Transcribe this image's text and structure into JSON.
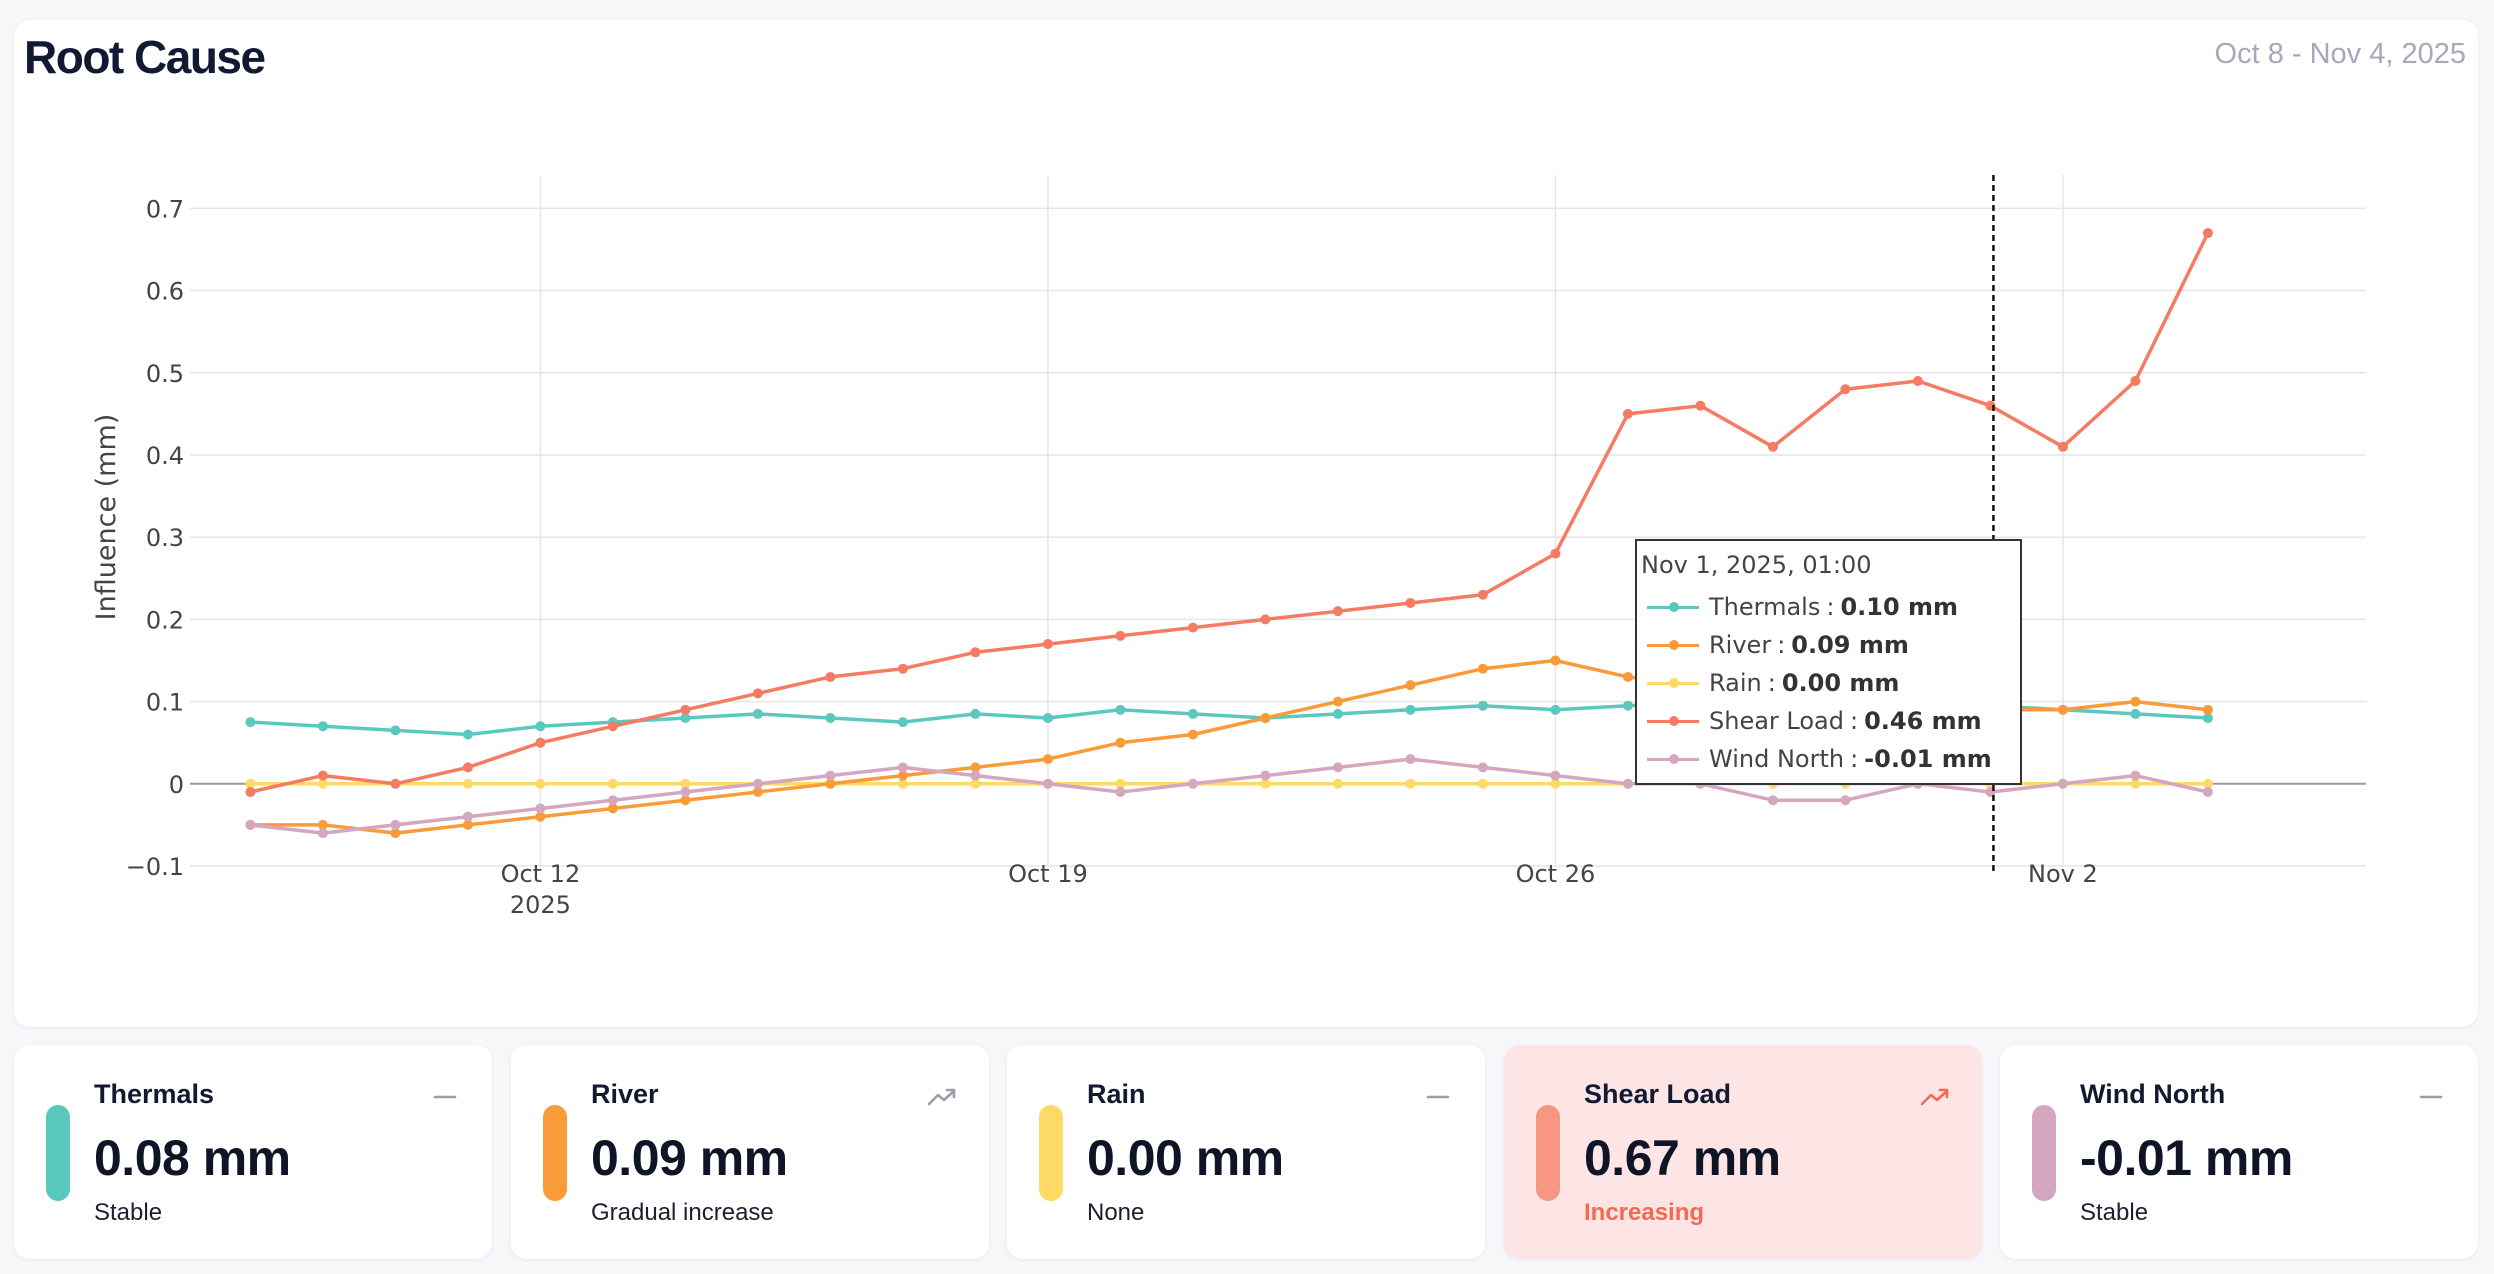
{
  "title": "Root Cause",
  "date_range": "Oct 8 - Nov 4, 2025",
  "colors": {
    "thermals": "#5bc8c0",
    "river": "#f99b38",
    "rain": "#ffd966",
    "shear_load": "#f67b63",
    "wind_north": "#d4a6bf",
    "grid": "#e6e6e6",
    "axis_text": "#444444"
  },
  "chart_data": {
    "type": "line",
    "title": "",
    "ylabel": "Influence (mm)",
    "xlabel": "",
    "x_axis": {
      "type": "date",
      "range": [
        "2025-10-07T04:00",
        "2025-11-04T15:00"
      ],
      "ticks": [
        {
          "date": "2025-10-12",
          "label": "Oct 12",
          "sublabel": "2025"
        },
        {
          "date": "2025-10-19",
          "label": "Oct 19",
          "sublabel": ""
        },
        {
          "date": "2025-10-26",
          "label": "Oct 26",
          "sublabel": ""
        },
        {
          "date": "2025-11-02",
          "label": "Nov 2",
          "sublabel": ""
        }
      ]
    },
    "y_axis": {
      "range": [
        -0.1,
        0.72
      ],
      "ticks": [
        -0.1,
        0,
        0.1,
        0.2,
        0.3,
        0.4,
        0.5,
        0.6,
        0.7
      ],
      "tick_labels": [
        "−0.1",
        "0",
        "0.1",
        "0.2",
        "0.3",
        "0.4",
        "0.5",
        "0.6",
        "0.7"
      ]
    },
    "grid": true,
    "x": [
      "2025-10-08",
      "2025-10-09",
      "2025-10-10",
      "2025-10-11",
      "2025-10-12",
      "2025-10-13",
      "2025-10-14",
      "2025-10-15",
      "2025-10-16",
      "2025-10-17",
      "2025-10-18",
      "2025-10-19",
      "2025-10-20",
      "2025-10-21",
      "2025-10-22",
      "2025-10-23",
      "2025-10-24",
      "2025-10-25",
      "2025-10-26",
      "2025-10-27",
      "2025-10-28",
      "2025-10-29",
      "2025-10-30",
      "2025-10-31",
      "2025-11-01",
      "2025-11-02",
      "2025-11-03",
      "2025-11-04"
    ],
    "series": [
      {
        "name": "Thermals",
        "color_key": "thermals",
        "values": [
          0.075,
          0.07,
          0.065,
          0.06,
          0.07,
          0.075,
          0.08,
          0.085,
          0.08,
          0.075,
          0.085,
          0.08,
          0.09,
          0.085,
          0.08,
          0.085,
          0.09,
          0.095,
          0.09,
          0.095,
          0.1,
          0.095,
          0.1,
          0.095,
          0.095,
          0.09,
          0.085,
          0.08
        ]
      },
      {
        "name": "River",
        "color_key": "river",
        "values": [
          -0.05,
          -0.05,
          -0.06,
          -0.05,
          -0.04,
          -0.03,
          -0.02,
          -0.01,
          0.0,
          0.01,
          0.02,
          0.03,
          0.05,
          0.06,
          0.08,
          0.1,
          0.12,
          0.14,
          0.15,
          0.13,
          0.12,
          0.11,
          0.1,
          0.09,
          0.09,
          0.09,
          0.1,
          0.09
        ]
      },
      {
        "name": "Rain",
        "color_key": "rain",
        "values": [
          0,
          0,
          0,
          0,
          0,
          0,
          0,
          0,
          0,
          0,
          0,
          0,
          0,
          0,
          0,
          0,
          0,
          0,
          0,
          0,
          0,
          0,
          0,
          0,
          0,
          0,
          0,
          0
        ]
      },
      {
        "name": "Shear Load",
        "color_key": "shear_load",
        "values": [
          -0.01,
          0.01,
          0.0,
          0.02,
          0.05,
          0.07,
          0.09,
          0.11,
          0.13,
          0.14,
          0.16,
          0.17,
          0.18,
          0.19,
          0.2,
          0.21,
          0.22,
          0.23,
          0.28,
          0.45,
          0.46,
          0.41,
          0.48,
          0.49,
          0.46,
          0.41,
          0.49,
          0.67
        ]
      },
      {
        "name": "Wind North",
        "color_key": "wind_north",
        "values": [
          -0.05,
          -0.06,
          -0.05,
          -0.04,
          -0.03,
          -0.02,
          -0.01,
          0.0,
          0.01,
          0.02,
          0.01,
          0.0,
          -0.01,
          0.0,
          0.01,
          0.02,
          0.03,
          0.02,
          0.01,
          0.0,
          0.0,
          -0.02,
          -0.02,
          0.0,
          -0.01,
          0.0,
          0.01,
          -0.01
        ]
      }
    ],
    "hover": {
      "x": "2025-11-01T01:00",
      "title": "Nov 1, 2025, 01:00",
      "rows": [
        {
          "name": "Thermals",
          "sep": ":",
          "value": "0.10 mm",
          "color_key": "thermals"
        },
        {
          "name": "River",
          "sep": ":",
          "value": "0.09 mm",
          "color_key": "river"
        },
        {
          "name": "Rain",
          "sep": ":",
          "value": "0.00 mm",
          "color_key": "rain"
        },
        {
          "name": "Shear Load",
          "sep": ":",
          "value": "0.46 mm",
          "color_key": "shear_load"
        },
        {
          "name": "Wind North",
          "sep": ":",
          "value": "-0.01 mm",
          "color_key": "wind_north"
        }
      ]
    }
  },
  "cards": [
    {
      "name": "Thermals",
      "value": "0.08 mm",
      "desc": "Stable",
      "trend": "flat",
      "color_key": "thermals",
      "highlight": false
    },
    {
      "name": "River",
      "value": "0.09 mm",
      "desc": "Gradual increase",
      "trend": "up",
      "color_key": "river",
      "highlight": false
    },
    {
      "name": "Rain",
      "value": "0.00 mm",
      "desc": "None",
      "trend": "flat",
      "color_key": "rain",
      "highlight": false
    },
    {
      "name": "Shear Load",
      "value": "0.67 mm",
      "desc": "Increasing",
      "trend": "up",
      "color_key": "shear_load",
      "highlight": true
    },
    {
      "name": "Wind North",
      "value": "-0.01 mm",
      "desc": "Stable",
      "trend": "flat",
      "color_key": "wind_north",
      "highlight": false
    }
  ]
}
